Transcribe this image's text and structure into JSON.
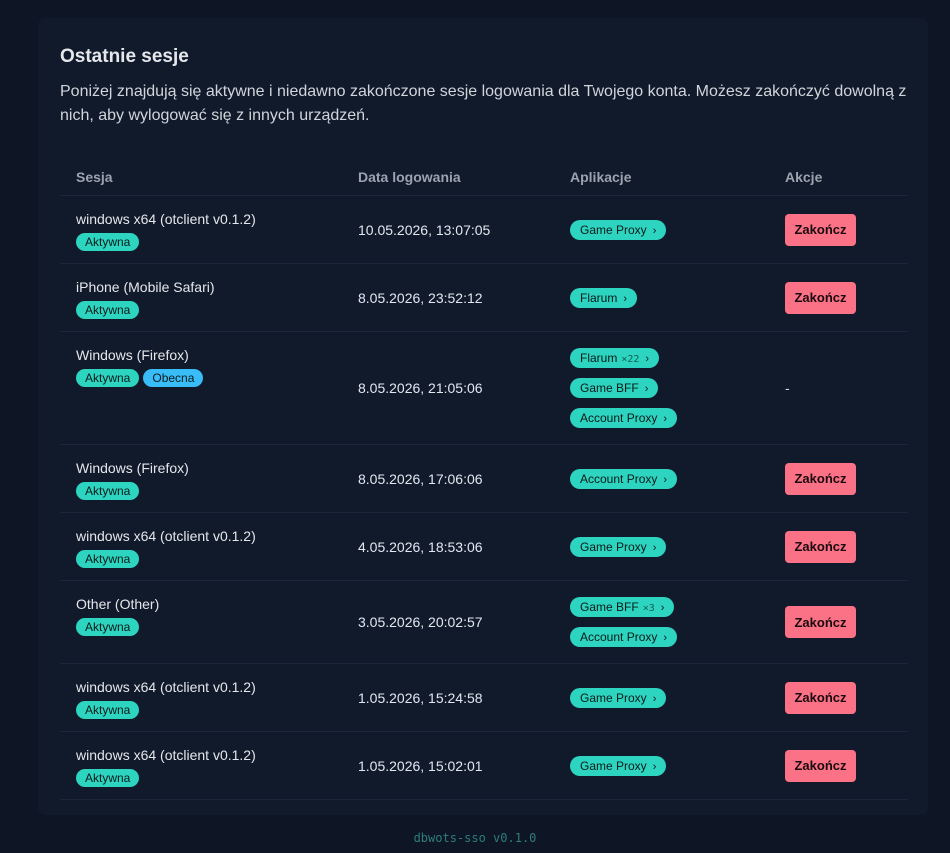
{
  "header": {
    "title": "Ostatnie sesje",
    "description": "Poniżej znajdują się aktywne i niedawno zakończone sesje logowania dla Twojego konta. Możesz zakończyć dowolną z nich, aby wylogować się z innych urządzeń."
  },
  "table": {
    "columns": [
      "Sesja",
      "Data logowania",
      "Aplikacje",
      "Akcje"
    ],
    "rows": [
      {
        "session": "windows x64 (otclient v0.1.2)",
        "badges": [
          {
            "label": "Aktywna",
            "kind": "active"
          }
        ],
        "date": "10.05.2026, 13:07:05",
        "apps": [
          {
            "name": "Game Proxy"
          }
        ],
        "action": {
          "type": "button",
          "label": "Zakończ"
        }
      },
      {
        "session": "iPhone (Mobile Safari)",
        "badges": [
          {
            "label": "Aktywna",
            "kind": "active"
          }
        ],
        "date": "8.05.2026, 23:52:12",
        "apps": [
          {
            "name": "Flarum"
          }
        ],
        "action": {
          "type": "button",
          "label": "Zakończ"
        }
      },
      {
        "session": "Windows (Firefox)",
        "badges": [
          {
            "label": "Aktywna",
            "kind": "active"
          },
          {
            "label": "Obecna",
            "kind": "current"
          }
        ],
        "date": "8.05.2026, 21:05:06",
        "apps": [
          {
            "name": "Flarum",
            "count": "×22"
          },
          {
            "name": "Game BFF"
          },
          {
            "name": "Account Proxy"
          }
        ],
        "action": {
          "type": "text",
          "label": "-"
        }
      },
      {
        "session": "Windows (Firefox)",
        "badges": [
          {
            "label": "Aktywna",
            "kind": "active"
          }
        ],
        "date": "8.05.2026, 17:06:06",
        "apps": [
          {
            "name": "Account Proxy"
          }
        ],
        "action": {
          "type": "button",
          "label": "Zakończ"
        }
      },
      {
        "session": "windows x64 (otclient v0.1.2)",
        "badges": [
          {
            "label": "Aktywna",
            "kind": "active"
          }
        ],
        "date": "4.05.2026, 18:53:06",
        "apps": [
          {
            "name": "Game Proxy"
          }
        ],
        "action": {
          "type": "button",
          "label": "Zakończ"
        }
      },
      {
        "session": "Other (Other)",
        "badges": [
          {
            "label": "Aktywna",
            "kind": "active"
          }
        ],
        "date": "3.05.2026, 20:02:57",
        "apps": [
          {
            "name": "Game BFF",
            "count": "×3"
          },
          {
            "name": "Account Proxy"
          }
        ],
        "action": {
          "type": "button",
          "label": "Zakończ"
        }
      },
      {
        "session": "windows x64 (otclient v0.1.2)",
        "badges": [
          {
            "label": "Aktywna",
            "kind": "active"
          }
        ],
        "date": "1.05.2026, 15:24:58",
        "apps": [
          {
            "name": "Game Proxy"
          }
        ],
        "action": {
          "type": "button",
          "label": "Zakończ"
        }
      },
      {
        "session": "windows x64 (otclient v0.1.2)",
        "badges": [
          {
            "label": "Aktywna",
            "kind": "active"
          }
        ],
        "date": "1.05.2026, 15:02:01",
        "apps": [
          {
            "name": "Game Proxy"
          }
        ],
        "action": {
          "type": "button",
          "label": "Zakończ"
        }
      }
    ]
  },
  "footer": "dbwots-sso v0.1.0"
}
